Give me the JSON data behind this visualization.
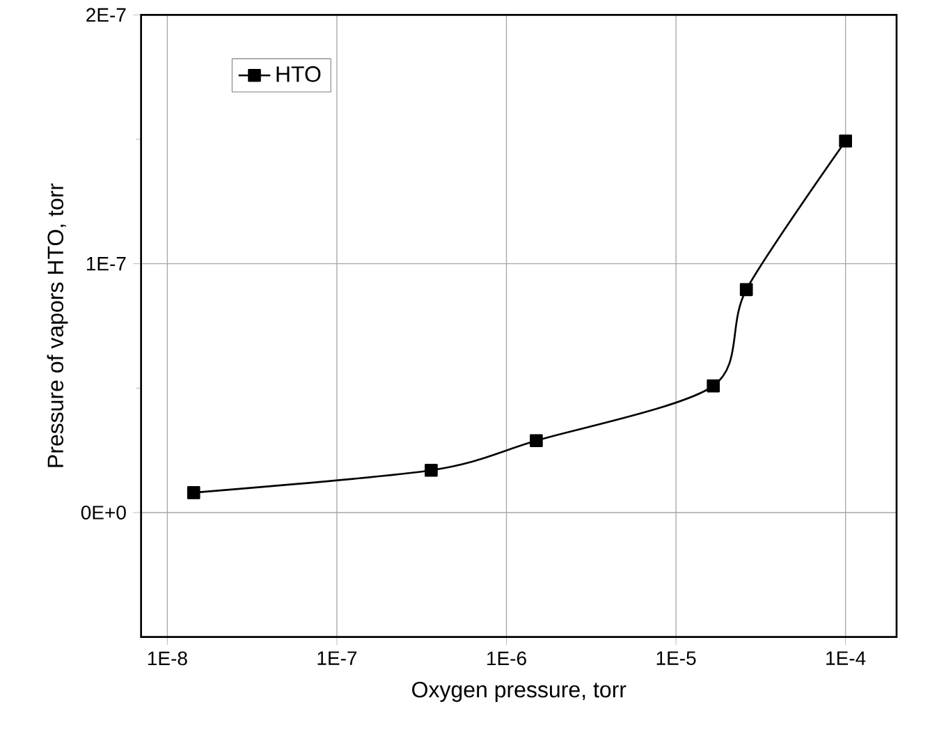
{
  "chart_data": {
    "type": "line",
    "xlabel": "Oxygen pressure, torr",
    "ylabel": "Pressure of vapors HTO, torr",
    "log": "x",
    "xlim": [
      7e-09,
      0.0002
    ],
    "xticks": [
      {
        "value": 1e-08,
        "label": "1E-8"
      },
      {
        "value": 1e-07,
        "label": "1E-7"
      },
      {
        "value": 1e-06,
        "label": "1E-6"
      },
      {
        "value": 1e-05,
        "label": "1E-5"
      },
      {
        "value": 0.0001,
        "label": "1E-4"
      }
    ],
    "ylim": [
      -5e-08,
      2e-07
    ],
    "yticks": [
      {
        "value": 0,
        "label": "0E+0"
      },
      {
        "value": 1e-07,
        "label": "1E-7"
      },
      {
        "value": 2e-07,
        "label": "2E-7"
      }
    ],
    "grid": true,
    "legend": "top left",
    "marker": "square",
    "line_style": "solid",
    "series": [
      {
        "name": "HTO",
        "color": "#000000",
        "x": [
          1.43e-08,
          3.6e-07,
          1.5e-06,
          1.66e-05,
          2.6e-05,
          0.0001
        ],
        "values": [
          8e-09,
          1.7e-08,
          2.89e-08,
          5.09e-08,
          8.96e-08,
          1.493e-07
        ]
      }
    ]
  }
}
